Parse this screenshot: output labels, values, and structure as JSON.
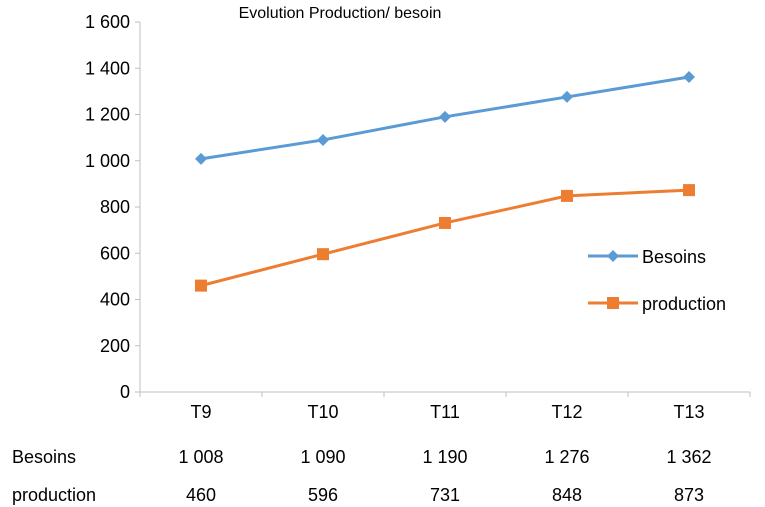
{
  "chart_data": {
    "type": "line",
    "title": "Evolution Production/ besoin",
    "xlabel": "",
    "ylabel": "",
    "categories": [
      "T9",
      "T10",
      "T11",
      "T12",
      "T13"
    ],
    "ylim": [
      0,
      1600
    ],
    "yticks": [
      0,
      200,
      400,
      600,
      800,
      1000,
      1200,
      1400,
      1600
    ],
    "ytick_labels": [
      "0",
      "200",
      "400",
      "600",
      "800",
      "1 000",
      "1 200",
      "1 400",
      "1 600"
    ],
    "grid": false,
    "legend_position": "right",
    "series": [
      {
        "name": "Besoins",
        "values": [
          1008,
          1090,
          1190,
          1276,
          1362
        ],
        "value_labels": [
          "1 008",
          "1 090",
          "1 190",
          "1 276",
          "1 362"
        ],
        "color": "#5b9bd5",
        "marker": "diamond"
      },
      {
        "name": "production",
        "values": [
          460,
          596,
          731,
          848,
          873
        ],
        "value_labels": [
          "460",
          "596",
          "731",
          "848",
          "873"
        ],
        "color": "#ed7d31",
        "marker": "square"
      }
    ]
  }
}
